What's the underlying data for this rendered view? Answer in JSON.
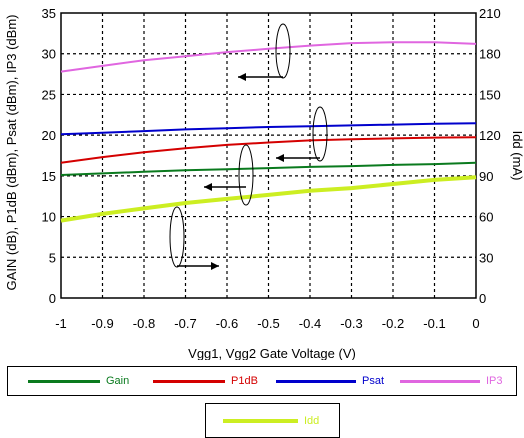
{
  "chart_data": {
    "type": "line",
    "xlabel": "Vgg1, Vgg2  Gate Voltage (V)",
    "ylabel_left": "GAIN (dB), P1dB (dBm), Psat (dBm), IP3 (dBm)",
    "ylabel_right": "Idd (mA)",
    "xlim": [
      -1,
      0
    ],
    "ylim_left": [
      0,
      35
    ],
    "ylim_right": [
      0,
      210
    ],
    "x_ticks": [
      "-1",
      "-0.9",
      "-0.8",
      "-0.7",
      "-0.6",
      "-0.5",
      "-0.4",
      "-0.3",
      "-0.2",
      "-0.1",
      "0"
    ],
    "y_left_ticks": [
      "0",
      "5",
      "10",
      "15",
      "20",
      "25",
      "30",
      "35"
    ],
    "y_right_ticks": [
      "0",
      "30",
      "60",
      "90",
      "120",
      "150",
      "180",
      "210"
    ],
    "grid": true,
    "legend_placement": "bottom",
    "series": [
      {
        "name": "Gain",
        "axis": "left",
        "color": "#0a7a1e",
        "x": [
          -1,
          -0.9,
          -0.8,
          -0.7,
          -0.6,
          -0.5,
          -0.4,
          -0.3,
          -0.2,
          -0.1,
          0
        ],
        "values": [
          15.1,
          15.3,
          15.5,
          15.7,
          15.8,
          15.95,
          16.1,
          16.2,
          16.35,
          16.45,
          16.6
        ]
      },
      {
        "name": "P1dB",
        "axis": "left",
        "color": "#d40000",
        "x": [
          -1,
          -0.9,
          -0.8,
          -0.7,
          -0.6,
          -0.5,
          -0.4,
          -0.3,
          -0.2,
          -0.1,
          0
        ],
        "values": [
          16.6,
          17.3,
          17.9,
          18.4,
          18.8,
          19.1,
          19.35,
          19.5,
          19.6,
          19.7,
          19.75
        ]
      },
      {
        "name": "Psat",
        "axis": "left",
        "color": "#0000cc",
        "x": [
          -1,
          -0.9,
          -0.8,
          -0.7,
          -0.6,
          -0.5,
          -0.4,
          -0.3,
          -0.2,
          -0.1,
          0
        ],
        "values": [
          20.1,
          20.3,
          20.5,
          20.7,
          20.85,
          21.0,
          21.1,
          21.2,
          21.3,
          21.4,
          21.45
        ]
      },
      {
        "name": "IP3",
        "axis": "left",
        "color": "#e066e0",
        "x": [
          -1,
          -0.9,
          -0.8,
          -0.7,
          -0.6,
          -0.5,
          -0.4,
          -0.3,
          -0.2,
          -0.1,
          0
        ],
        "values": [
          27.8,
          28.5,
          29.2,
          29.7,
          30.2,
          30.6,
          31.0,
          31.3,
          31.4,
          31.4,
          31.2
        ]
      },
      {
        "name": "Idd",
        "axis": "right",
        "color": "#ccee22",
        "x": [
          -1,
          -0.9,
          -0.8,
          -0.7,
          -0.6,
          -0.5,
          -0.4,
          -0.3,
          -0.2,
          -0.1,
          0
        ],
        "values": [
          57,
          62,
          66,
          70,
          73,
          76,
          79,
          81,
          84,
          87,
          89
        ]
      }
    ]
  },
  "legend": {
    "row1": [
      {
        "label": "Gain",
        "color": "#0a7a1e"
      },
      {
        "label": "P1dB",
        "color": "#d40000"
      },
      {
        "label": "Psat",
        "color": "#0000cc"
      },
      {
        "label": "IP3",
        "color": "#e066e0"
      }
    ],
    "row2": [
      {
        "label": "Idd",
        "color": "#ccee22"
      }
    ]
  }
}
